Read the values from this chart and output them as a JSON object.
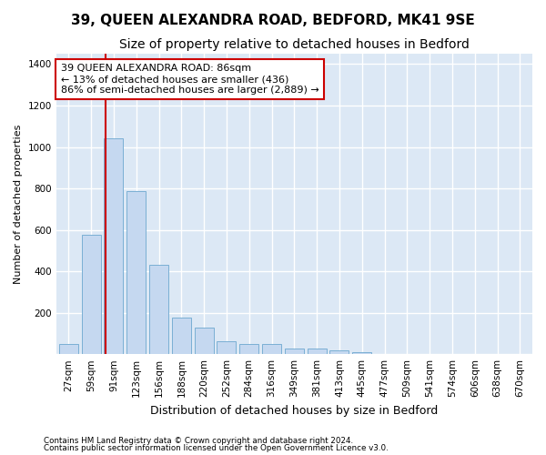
{
  "title1": "39, QUEEN ALEXANDRA ROAD, BEDFORD, MK41 9SE",
  "title2": "Size of property relative to detached houses in Bedford",
  "xlabel": "Distribution of detached houses by size in Bedford",
  "ylabel": "Number of detached properties",
  "categories": [
    "27sqm",
    "59sqm",
    "91sqm",
    "123sqm",
    "156sqm",
    "188sqm",
    "220sqm",
    "252sqm",
    "284sqm",
    "316sqm",
    "349sqm",
    "381sqm",
    "413sqm",
    "445sqm",
    "477sqm",
    "509sqm",
    "541sqm",
    "574sqm",
    "606sqm",
    "638sqm",
    "670sqm"
  ],
  "values": [
    48,
    578,
    1040,
    788,
    430,
    178,
    128,
    63,
    48,
    48,
    28,
    28,
    18,
    10,
    0,
    0,
    0,
    0,
    0,
    0,
    0
  ],
  "bar_color": "#c5d8f0",
  "bar_edgecolor": "#7aafd4",
  "vline_color": "#cc0000",
  "vline_pos": 1.625,
  "annotation_text": "39 QUEEN ALEXANDRA ROAD: 86sqm\n← 13% of detached houses are smaller (436)\n86% of semi-detached houses are larger (2,889) →",
  "annotation_box_facecolor": "#ffffff",
  "annotation_box_edgecolor": "#cc0000",
  "ylim": [
    0,
    1450
  ],
  "yticks": [
    0,
    200,
    400,
    600,
    800,
    1000,
    1200,
    1400
  ],
  "background_color": "#dce8f5",
  "grid_color": "#ffffff",
  "figure_facecolor": "#ffffff",
  "title1_fontsize": 11,
  "title2_fontsize": 10,
  "xlabel_fontsize": 9,
  "ylabel_fontsize": 8,
  "tick_fontsize": 7.5,
  "footer1": "Contains HM Land Registry data © Crown copyright and database right 2024.",
  "footer2": "Contains public sector information licensed under the Open Government Licence v3.0."
}
